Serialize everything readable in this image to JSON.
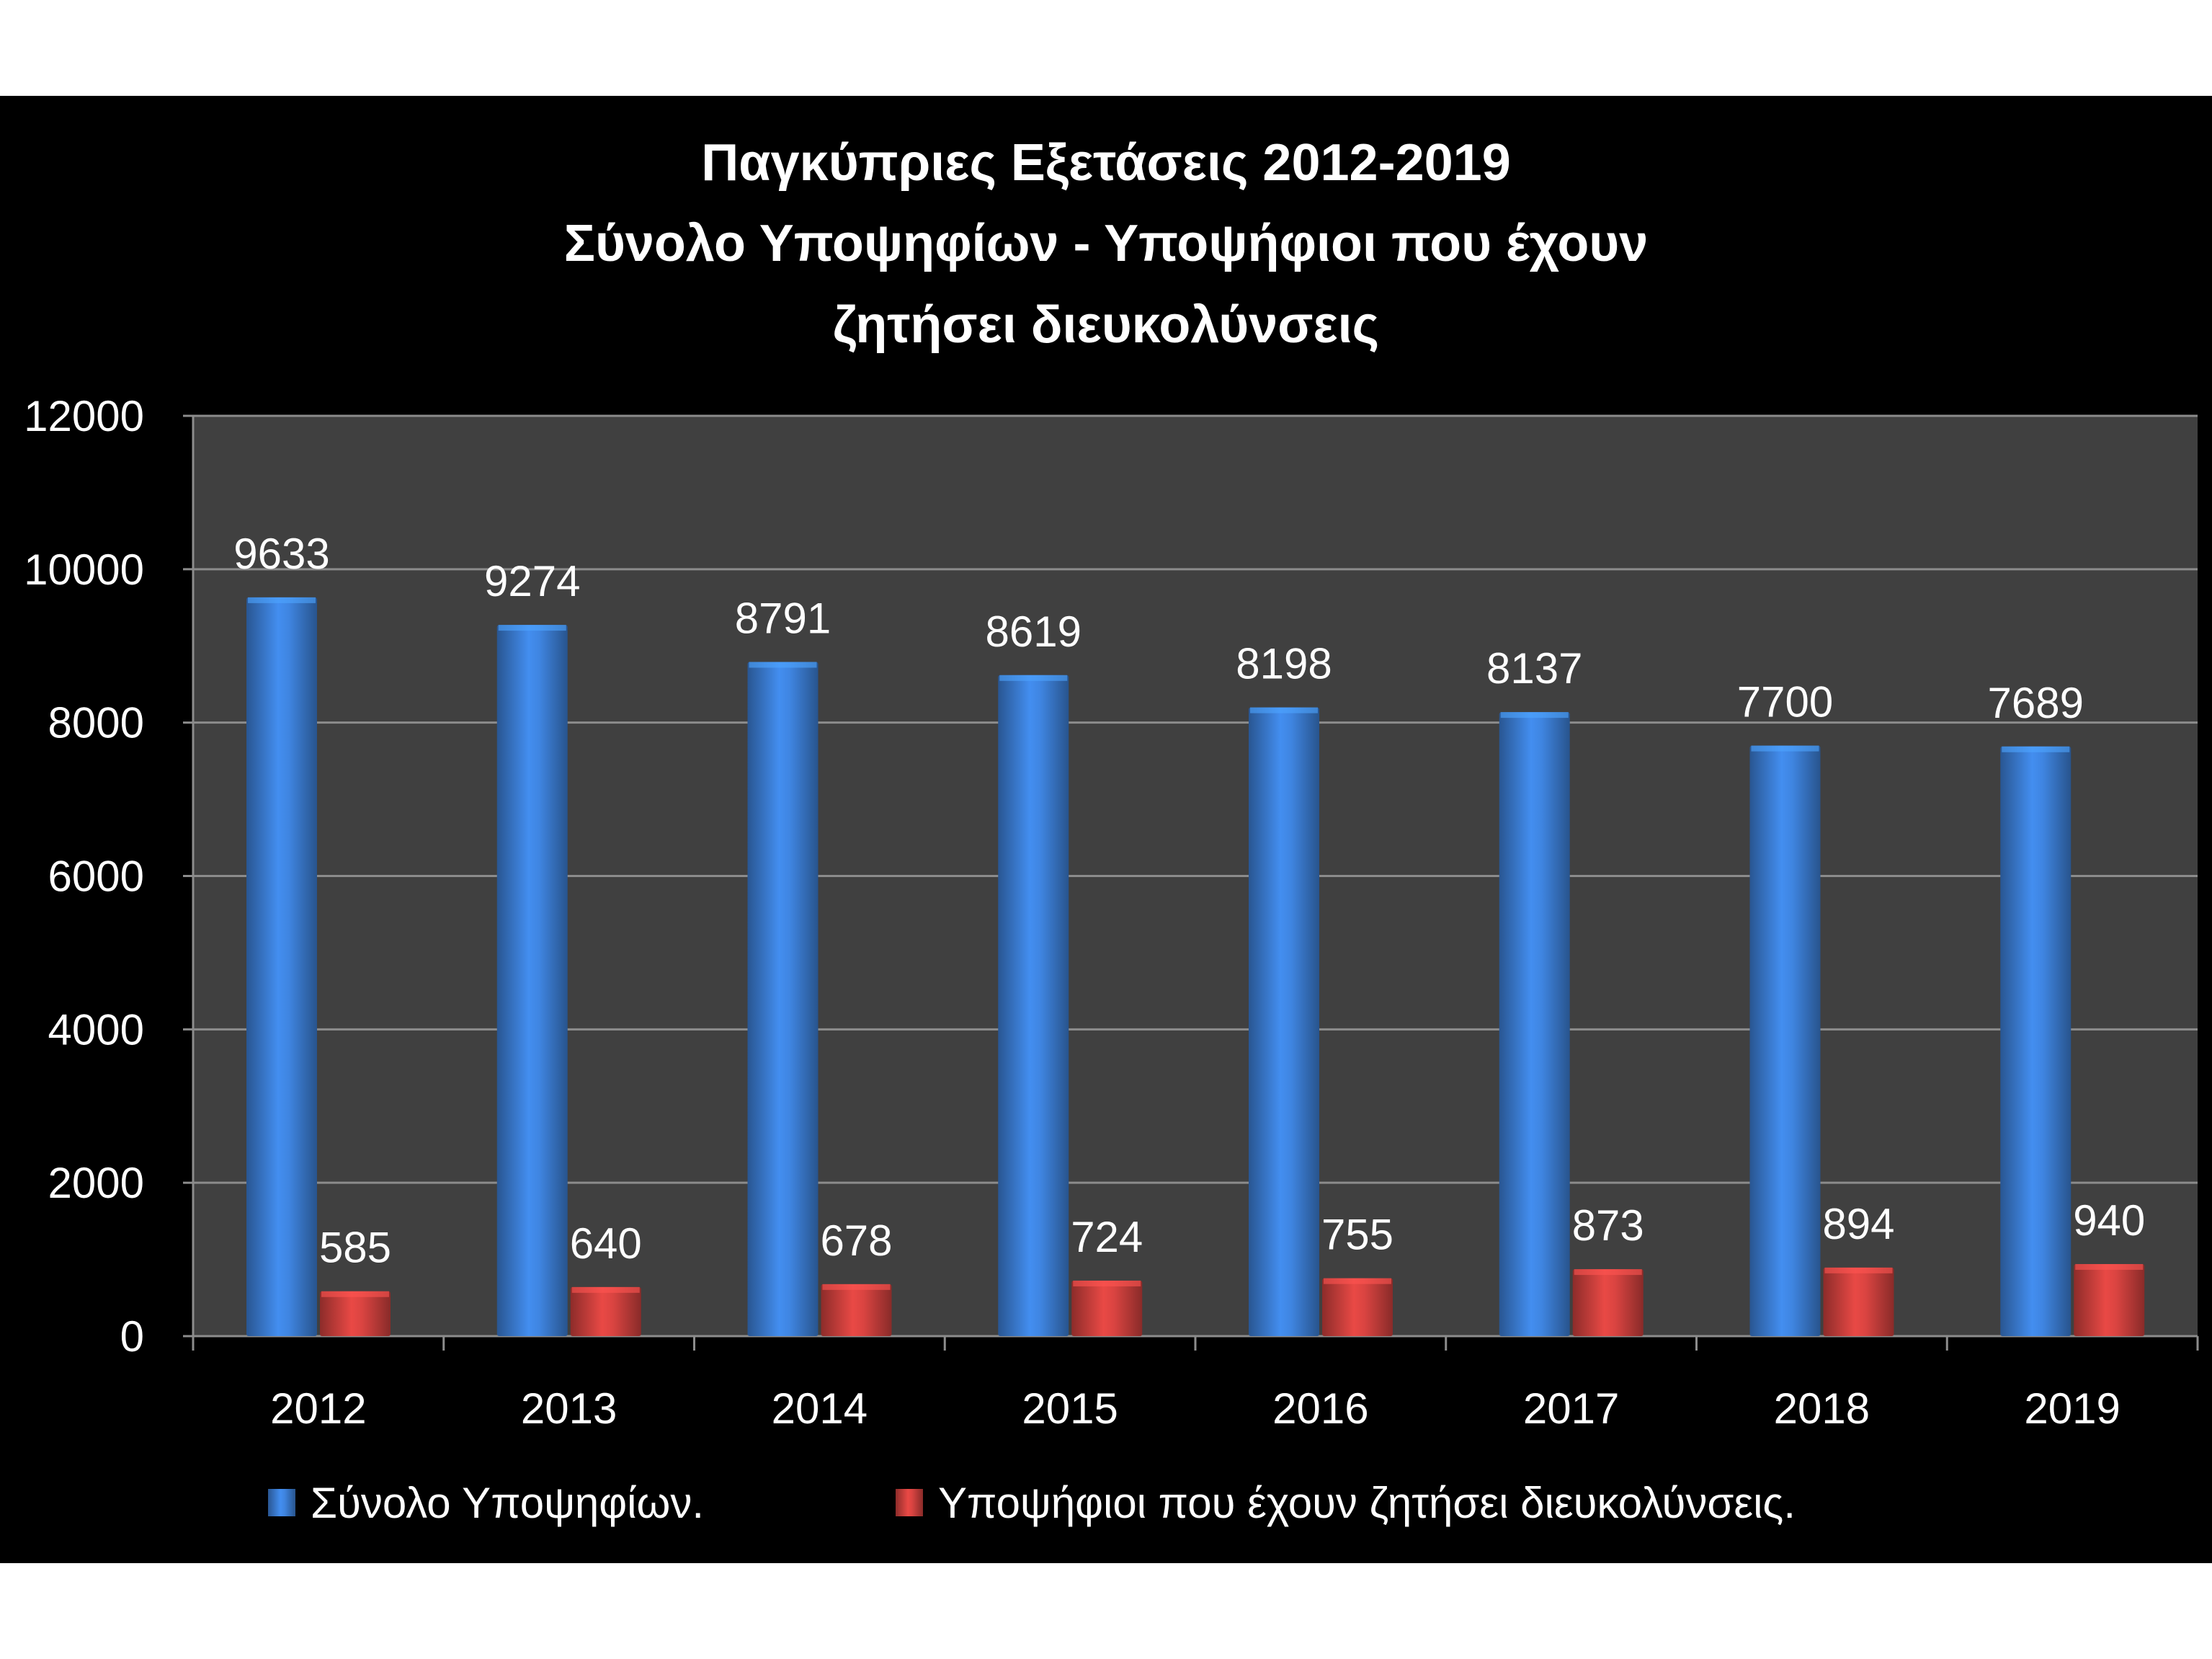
{
  "page": {
    "background": "#ffffff",
    "frame_color": "#000000",
    "plot_background": "#404040",
    "grid_color": "#8c8c8c",
    "text_color": "#ffffff"
  },
  "chart_data": {
    "type": "bar",
    "title_lines": [
      "Παγκύπριες Εξετάσεις 2012-2019",
      "Σύνολο Υποψηφίων - Υποψήφιοι που έχουν",
      "ζητήσει διευκολύνσεις"
    ],
    "categories": [
      "2012",
      "2013",
      "2014",
      "2015",
      "2016",
      "2017",
      "2018",
      "2019"
    ],
    "series": [
      {
        "name": "Σύνολο Υποψηφίων.",
        "color": "#3c7fd6",
        "values": [
          9633,
          9274,
          8791,
          8619,
          8198,
          8137,
          7700,
          7689
        ]
      },
      {
        "name": "Υποψήφιοι που έχουν ζητήσει διευκολύνσεις.",
        "color": "#d0413e",
        "values": [
          585,
          640,
          678,
          724,
          755,
          873,
          894,
          940
        ]
      }
    ],
    "ylim": [
      0,
      12000
    ],
    "yticks": [
      0,
      2000,
      4000,
      6000,
      8000,
      10000,
      12000
    ],
    "grid": true,
    "legend": "bottom",
    "data_labels": true
  }
}
